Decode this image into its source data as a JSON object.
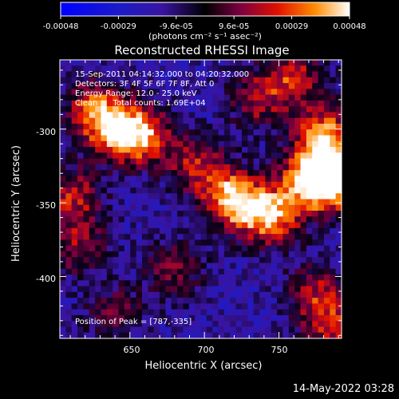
{
  "chart_data": {
    "type": "heatmap",
    "title": "Reconstructed RHESSI Image",
    "colorbar": {
      "ticks": [
        "-0.00048",
        "-0.00029",
        "-9.6e-05",
        "9.6e-05",
        "0.00029",
        "0.00048"
      ],
      "range": [
        -0.00048,
        0.00048
      ],
      "unit_text": "(photons cm⁻² s⁻¹ asec⁻²)"
    },
    "xlabel": "Heliocentric X (arcsec)",
    "ylabel": "Heliocentric Y (arcsec)",
    "xlim": [
      603,
      792
    ],
    "ylim": [
      -442,
      -253
    ],
    "xticks": [
      "650",
      "700",
      "750"
    ],
    "yticks": [
      "-300",
      "-350",
      "-400"
    ],
    "annotations": {
      "time": "15-Sep-2011 04:14:32.000 to 04:20:32.000",
      "detectors": "Detectors: 3F 4F 5F 6F 7F 8F, Att 0",
      "energy": "Energy Range: 12.0 - 25.0 keV",
      "clean": "Clean      Total counts: 1.69E+04",
      "peak": "Position of Peak = [787,-335]"
    },
    "peak": [
      787,
      -335
    ],
    "sources": [
      {
        "x": 720,
        "y": -348,
        "amp": 1.0
      },
      {
        "x": 745,
        "y": -360,
        "amp": 0.85
      },
      {
        "x": 770,
        "y": -335,
        "amp": 0.8
      },
      {
        "x": 787,
        "y": -335,
        "amp": 1.0
      },
      {
        "x": 780,
        "y": -305,
        "amp": 0.9
      },
      {
        "x": 640,
        "y": -300,
        "amp": 0.8
      },
      {
        "x": 660,
        "y": -305,
        "amp": 0.75
      },
      {
        "x": 625,
        "y": -285,
        "amp": 0.6
      },
      {
        "x": 695,
        "y": -325,
        "amp": 0.55
      },
      {
        "x": 735,
        "y": -280,
        "amp": 0.5
      },
      {
        "x": 760,
        "y": -265,
        "amp": 0.6
      },
      {
        "x": 612,
        "y": -345,
        "amp": 0.6
      },
      {
        "x": 615,
        "y": -380,
        "amp": 0.5
      },
      {
        "x": 680,
        "y": -395,
        "amp": 0.45
      },
      {
        "x": 775,
        "y": -410,
        "amp": 0.5
      },
      {
        "x": 785,
        "y": -435,
        "amp": 0.55
      },
      {
        "x": 640,
        "y": -425,
        "amp": 0.4
      }
    ]
  },
  "footer": {
    "date": "14-May-2022 03:28"
  }
}
